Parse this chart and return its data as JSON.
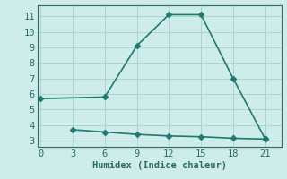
{
  "xlabel": "Humidex (Indice chaleur)",
  "bg_color": "#ceecea",
  "grid_color": "#aed4d0",
  "line_color": "#1e7a70",
  "line1_x": [
    0,
    6,
    9,
    12,
    15,
    18,
    21
  ],
  "line1_y": [
    5.7,
    5.8,
    9.1,
    11.1,
    11.1,
    7.0,
    3.1
  ],
  "line2_x": [
    3,
    6,
    9,
    12,
    15,
    18,
    21
  ],
  "line2_y": [
    3.7,
    3.55,
    3.4,
    3.3,
    3.25,
    3.15,
    3.1
  ],
  "xticks": [
    0,
    3,
    6,
    9,
    12,
    15,
    18,
    21
  ],
  "yticks": [
    3,
    4,
    5,
    6,
    7,
    8,
    9,
    10,
    11
  ],
  "xlim": [
    -0.3,
    22.5
  ],
  "ylim": [
    2.6,
    11.7
  ],
  "markersize": 3.5,
  "linewidth": 1.2,
  "font_family": "monospace",
  "xlabel_fontsize": 7.5,
  "tick_fontsize": 7.5,
  "spine_color": "#2a6b65"
}
